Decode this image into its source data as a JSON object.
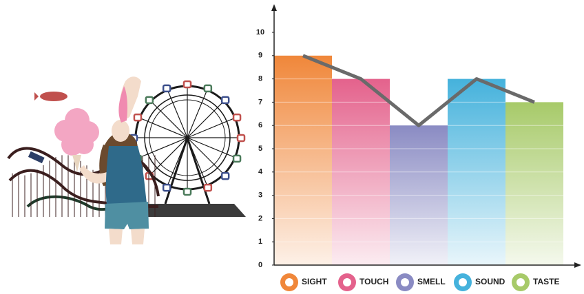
{
  "chart_data": {
    "type": "bar",
    "categories": [
      "SIGHT",
      "TOUCH",
      "SMELL",
      "SOUND",
      "TASTE"
    ],
    "values": [
      9,
      8,
      6,
      8,
      7
    ],
    "colors": [
      "#f0873a",
      "#e4628c",
      "#8a8bc3",
      "#45b2dc",
      "#a7ca69"
    ],
    "line_color": "#6a6a6a",
    "ylim": [
      0,
      10
    ],
    "yticks": [
      0,
      1,
      2,
      3,
      4,
      5,
      6,
      7,
      8,
      9,
      10
    ]
  }
}
